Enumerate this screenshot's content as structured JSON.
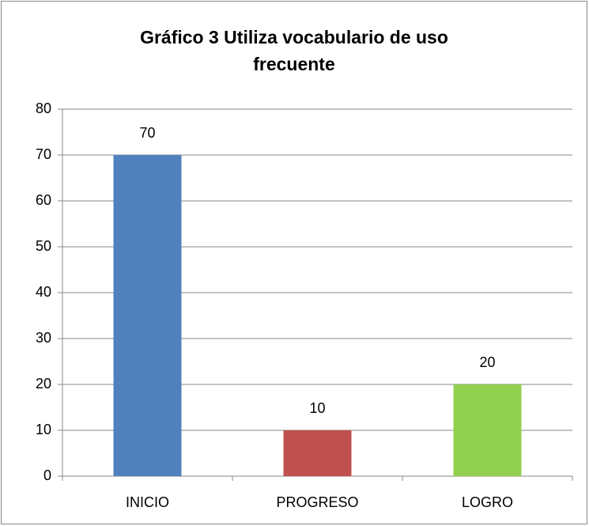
{
  "chart_data": {
    "type": "bar",
    "title": "Gráfico 3 Utiliza vocabulario de uso frecuente",
    "categories": [
      "INICIO",
      "PROGRESO",
      "LOGRO"
    ],
    "values": [
      70,
      10,
      20
    ],
    "colors": [
      "#4f81bd",
      "#c0504d",
      "#92d050"
    ],
    "ylim": [
      0,
      80
    ],
    "yticks": [
      0,
      10,
      20,
      30,
      40,
      50,
      60,
      70,
      80
    ],
    "grid": true
  }
}
